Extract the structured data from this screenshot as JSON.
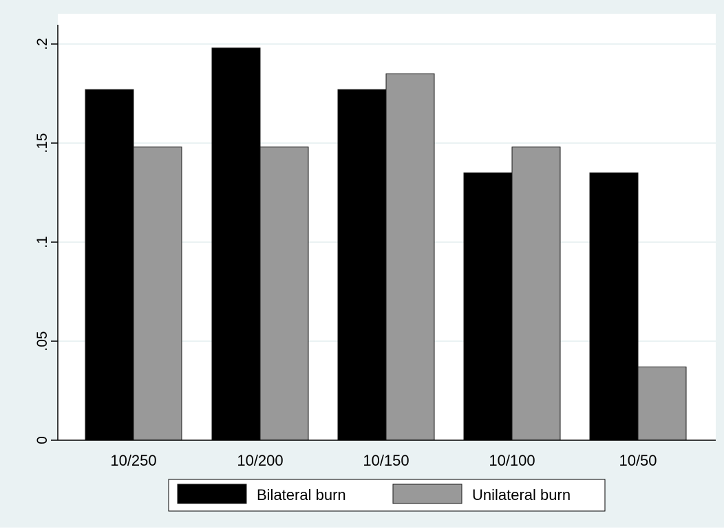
{
  "chart_data": {
    "type": "bar",
    "title": "",
    "xlabel": "",
    "ylabel": "",
    "categories": [
      "10/250",
      "10/200",
      "10/150",
      "10/100",
      "10/50"
    ],
    "series": [
      {
        "name": "Bilateral burn",
        "color": "#000000",
        "values": [
          0.177,
          0.198,
          0.177,
          0.135,
          0.135
        ]
      },
      {
        "name": "Unilateral burn",
        "color": "#999999",
        "values": [
          0.148,
          0.148,
          0.185,
          0.148,
          0.037
        ]
      }
    ],
    "ylim": [
      0,
      0.2
    ],
    "yticks": [
      0,
      0.05,
      0.1,
      0.15,
      0.2
    ],
    "ytick_labels": [
      "0",
      ".05",
      ".1",
      ".15",
      ".2"
    ],
    "grid": true,
    "legend_position": "bottom",
    "colors": {
      "background": "#eaf2f3",
      "plot_area": "#ffffff",
      "grid": "#eaf2f3",
      "axis": "#000000"
    }
  }
}
